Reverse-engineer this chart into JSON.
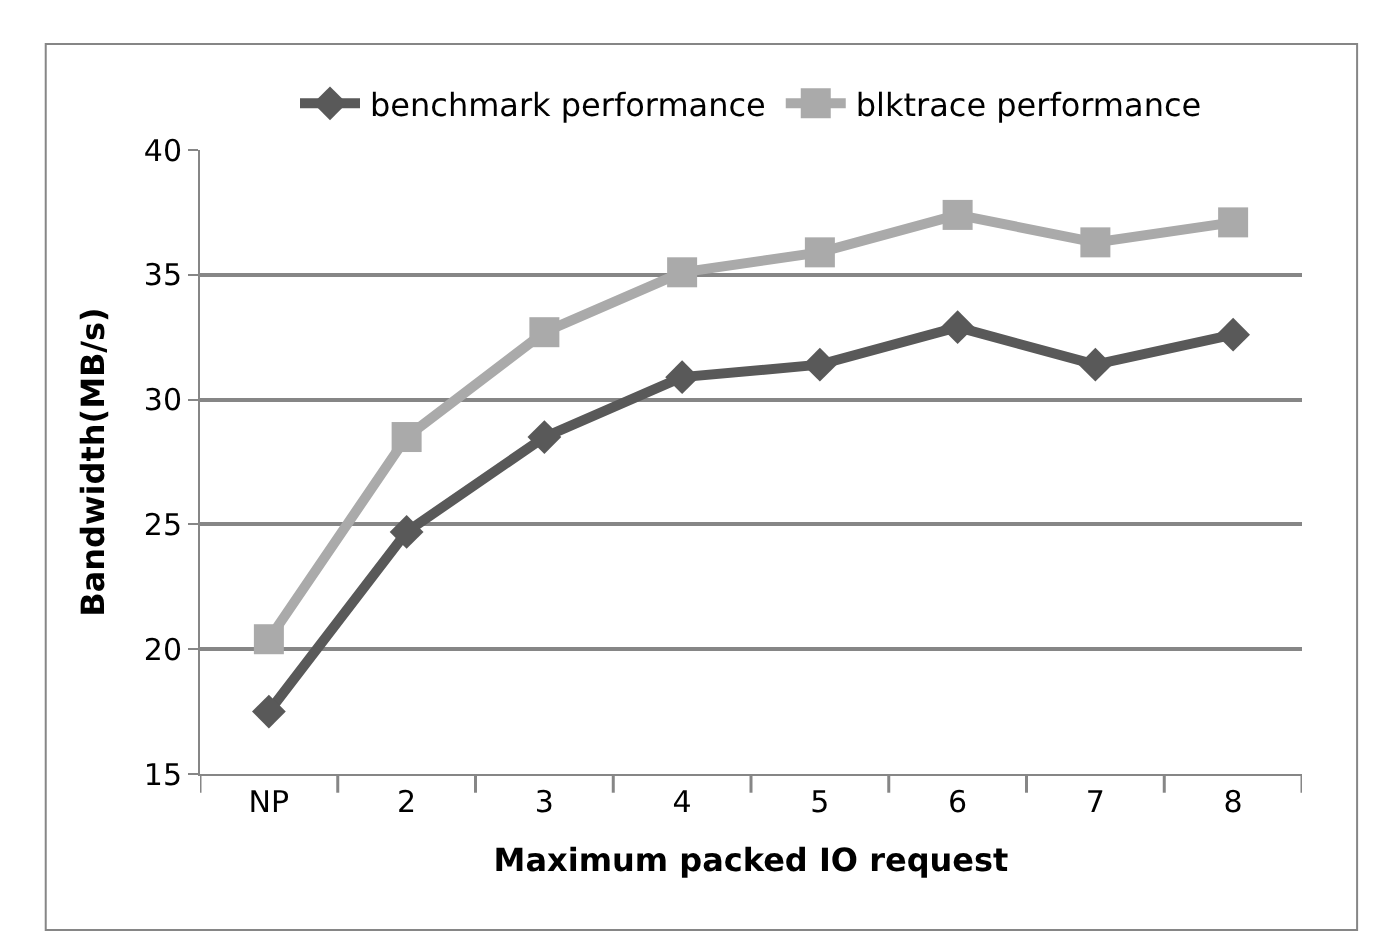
{
  "chart_data": {
    "type": "line",
    "xlabel": "Maximum packed IO request",
    "ylabel": "Bandwidth(MB/s)",
    "categories": [
      "NP",
      "2",
      "3",
      "4",
      "5",
      "6",
      "7",
      "8"
    ],
    "series": [
      {
        "name": "benchmark performance",
        "color": "#595959",
        "marker": "diamond",
        "values": [
          17.5,
          24.7,
          28.5,
          30.9,
          31.4,
          32.9,
          31.4,
          32.6
        ]
      },
      {
        "name": "blktrace performance",
        "color": "#aaaaaa",
        "marker": "square",
        "values": [
          20.4,
          28.5,
          32.7,
          35.1,
          35.9,
          37.4,
          36.3,
          37.1
        ]
      }
    ],
    "ylim": [
      15,
      40
    ],
    "yticks": [
      15,
      20,
      25,
      30,
      35,
      40
    ],
    "grid": "y",
    "legend": "top",
    "line_style": "solid"
  }
}
